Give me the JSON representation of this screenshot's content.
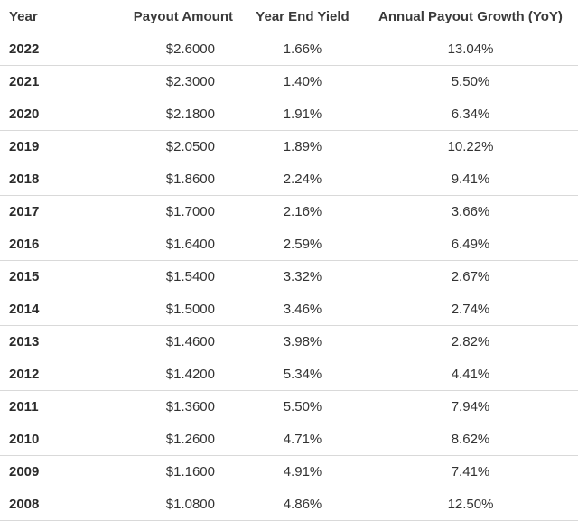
{
  "table": {
    "headers": {
      "year": "Year",
      "payout_amount": "Payout Amount",
      "year_end_yield": "Year End Yield",
      "annual_payout_growth": "Annual Payout Growth (YoY)"
    },
    "rows": [
      {
        "year": "2022",
        "amount": "$2.6000",
        "yield": "1.66%",
        "growth": "13.04%"
      },
      {
        "year": "2021",
        "amount": "$2.3000",
        "yield": "1.40%",
        "growth": "5.50%"
      },
      {
        "year": "2020",
        "amount": "$2.1800",
        "yield": "1.91%",
        "growth": "6.34%"
      },
      {
        "year": "2019",
        "amount": "$2.0500",
        "yield": "1.89%",
        "growth": "10.22%"
      },
      {
        "year": "2018",
        "amount": "$1.8600",
        "yield": "2.24%",
        "growth": "9.41%"
      },
      {
        "year": "2017",
        "amount": "$1.7000",
        "yield": "2.16%",
        "growth": "3.66%"
      },
      {
        "year": "2016",
        "amount": "$1.6400",
        "yield": "2.59%",
        "growth": "6.49%"
      },
      {
        "year": "2015",
        "amount": "$1.5400",
        "yield": "3.32%",
        "growth": "2.67%"
      },
      {
        "year": "2014",
        "amount": "$1.5000",
        "yield": "3.46%",
        "growth": "2.74%"
      },
      {
        "year": "2013",
        "amount": "$1.4600",
        "yield": "3.98%",
        "growth": "2.82%"
      },
      {
        "year": "2012",
        "amount": "$1.4200",
        "yield": "5.34%",
        "growth": "4.41%"
      },
      {
        "year": "2011",
        "amount": "$1.3600",
        "yield": "5.50%",
        "growth": "7.94%"
      },
      {
        "year": "2010",
        "amount": "$1.2600",
        "yield": "4.71%",
        "growth": "8.62%"
      },
      {
        "year": "2009",
        "amount": "$1.1600",
        "yield": "4.91%",
        "growth": "7.41%"
      },
      {
        "year": "2008",
        "amount": "$1.0800",
        "yield": "4.86%",
        "growth": "12.50%"
      }
    ]
  }
}
